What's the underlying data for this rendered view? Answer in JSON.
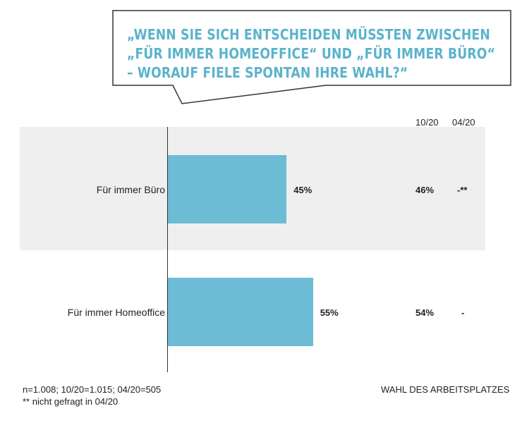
{
  "chart_data": {
    "type": "bar",
    "orientation": "horizontal",
    "title_lines": [
      "„WENN SIE SICH ENTSCHEIDEN MÜSSTEN ZWISCHEN",
      "„FÜR IMMER HOMEOFFICE“ UND „FÜR IMMER BÜRO“",
      "– WORAUF FIELE SPONTAN IHRE WAHL?“"
    ],
    "categories": [
      "Für immer Büro",
      "Für immer Homeoffice"
    ],
    "values": [
      45,
      55
    ],
    "value_labels": [
      "45%",
      "55%"
    ],
    "comparison_columns": [
      {
        "header": "10/20",
        "values": [
          "46%",
          "54%"
        ]
      },
      {
        "header": "04/20",
        "values": [
          "-**",
          "-"
        ]
      }
    ],
    "xlim": [
      0,
      100
    ],
    "grid": false,
    "bar_color": "#6bbcd4",
    "title_color": "#5bb3cc",
    "highlight_band_color": "#efefef"
  },
  "footer": {
    "note1": "n=1.008; 10/20=1.015; 04/20=505",
    "note2": "** nicht gefragt in 04/20",
    "section": "WAHL DES ARBEITSPLATZES"
  }
}
